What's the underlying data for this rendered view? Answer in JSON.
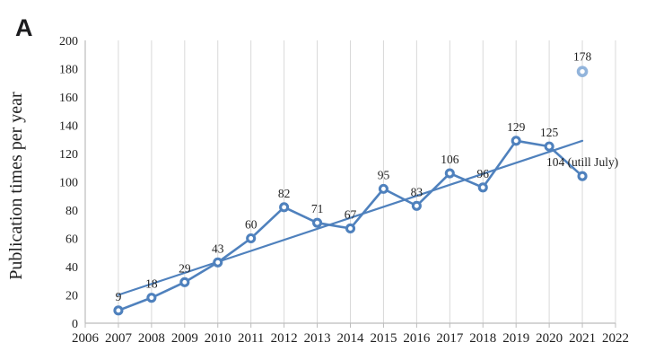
{
  "panel_label": "A",
  "colors": {
    "series_blue": "#4f81bd",
    "trend_blue": "#4f81bd",
    "projected_light_blue": "#92b4db",
    "gridline_gray": "#d9d9d9",
    "axis_gray": "#bcbcbc",
    "text_dark": "#1f1f1f"
  },
  "chart_data": {
    "type": "line",
    "title": "",
    "xlabel": "",
    "ylabel": "Publication times per year",
    "xlim": [
      2006,
      2022
    ],
    "ylim": [
      0,
      200
    ],
    "x_ticks": [
      2006,
      2007,
      2008,
      2009,
      2010,
      2011,
      2012,
      2013,
      2014,
      2015,
      2016,
      2017,
      2018,
      2019,
      2020,
      2021,
      2022
    ],
    "y_ticks": [
      0,
      20,
      40,
      60,
      80,
      100,
      120,
      140,
      160,
      180,
      200
    ],
    "grid": "vertical-only",
    "legend": "none",
    "series": [
      {
        "name": "publications-per-year",
        "x": [
          2007,
          2008,
          2009,
          2010,
          2011,
          2012,
          2013,
          2014,
          2015,
          2016,
          2017,
          2018,
          2019,
          2020,
          2021
        ],
        "values": [
          9,
          18,
          29,
          43,
          60,
          82,
          71,
          67,
          95,
          83,
          106,
          96,
          129,
          125,
          104
        ],
        "labels": [
          "9",
          "18",
          "29",
          "43",
          "60",
          "82",
          "71",
          "67",
          "95",
          "83",
          "106",
          "96",
          "129",
          "125",
          "104 (utill July)"
        ],
        "marker": "ring",
        "line": true
      },
      {
        "name": "projected-2021-total",
        "x": [
          2021
        ],
        "values": [
          178
        ],
        "labels": [
          "178"
        ],
        "marker": "ring-light",
        "line": false
      }
    ],
    "trendline": {
      "x_start": 2007,
      "y_start": 20,
      "x_end": 2021,
      "y_end": 129
    }
  }
}
